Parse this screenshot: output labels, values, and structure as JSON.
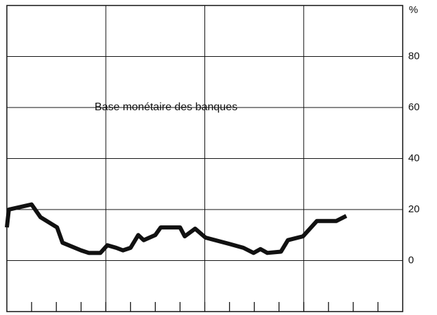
{
  "chart_data": {
    "type": "line",
    "annotation": "Base monétaire des banques",
    "y_label": "%",
    "x": [
      0,
      0.08,
      1,
      1.36,
      2.03,
      2.25,
      3,
      3.31,
      3.78,
      4.06,
      4.42,
      4.69,
      5,
      5.31,
      5.53,
      6,
      6.22,
      7,
      7.19,
      7.61,
      8.03,
      9,
      9.56,
      9.97,
      10.25,
      10.53,
      11.08,
      11.36,
      11.97,
      12.53,
      13.31,
      13.72
    ],
    "series": [
      {
        "name": "Base monétaire des banques",
        "color": "#111111",
        "values": [
          13,
          20,
          22,
          17,
          13,
          7,
          4,
          3,
          3,
          6,
          5,
          4,
          5,
          10,
          8,
          10,
          13,
          13,
          9.5,
          12.5,
          9,
          6.5,
          5,
          3,
          4.5,
          3,
          3.5,
          8,
          9.5,
          15.5,
          15.5,
          17.5
        ]
      }
    ],
    "xlim": [
      0,
      16
    ],
    "xticks": [
      1,
      2,
      3,
      4,
      5,
      6,
      7,
      8,
      9,
      10,
      11,
      12,
      13,
      14,
      15
    ],
    "xgrid": [
      4,
      8,
      12
    ],
    "ylim": [
      -20,
      100
    ],
    "yticks": [
      0,
      20,
      40,
      60,
      80
    ],
    "grid": true
  }
}
